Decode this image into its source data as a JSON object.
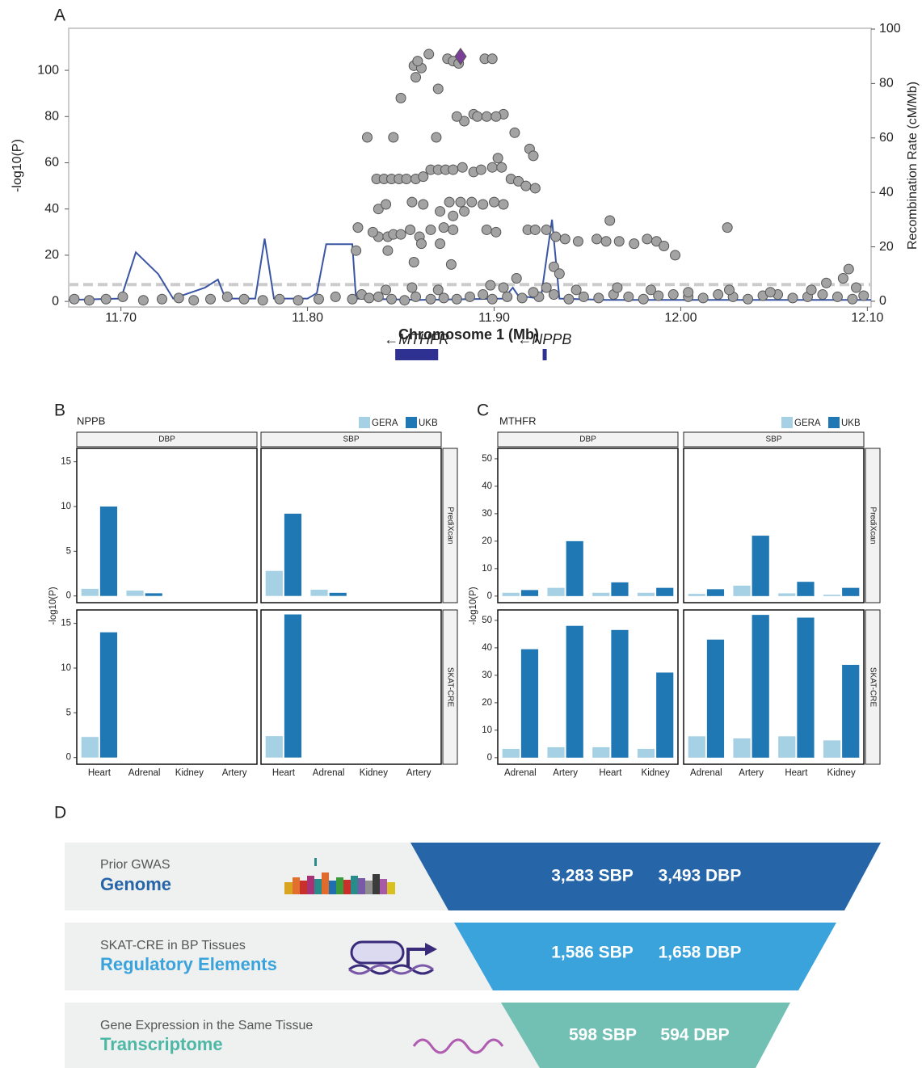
{
  "chart_data": [
    {
      "type": "scatter",
      "panel": "A",
      "xlabel": "Chromosome 1 (Mb)",
      "ylabel": "-log10(P)",
      "y2label": "Recombination Rate (cM/Mb)",
      "xlim": [
        11.672,
        12.102
      ],
      "xticks": [
        {
          "value": 11.7,
          "label": "11.70"
        },
        {
          "value": 11.8,
          "label": "11.80"
        },
        {
          "value": 11.9,
          "label": "11.90"
        },
        {
          "value": 12.0,
          "label": "12.00"
        },
        {
          "value": 12.1,
          "label": "12.10"
        }
      ],
      "ylim": [
        -2.4,
        118.2
      ],
      "yticks": [
        0,
        20,
        40,
        60,
        80,
        100
      ],
      "y2lim": [
        -2.1,
        100.3
      ],
      "y2ticks": [
        0,
        20,
        40,
        60,
        80,
        100
      ],
      "color": "#a3a3a3",
      "x": [
        11.875,
        11.878,
        11.881,
        11.895,
        11.899,
        11.857,
        11.861,
        11.859,
        11.865,
        11.858,
        11.87,
        11.85,
        11.889,
        11.891,
        11.896,
        11.905,
        11.884,
        11.88,
        11.901,
        11.911,
        11.832,
        11.846,
        11.869,
        11.919,
        11.921,
        11.902,
        11.837,
        11.841,
        11.845,
        11.849,
        11.853,
        11.858,
        11.862,
        11.866,
        11.87,
        11.874,
        11.878,
        11.883,
        11.889,
        11.893,
        11.899,
        11.904,
        11.909,
        11.913,
        11.917,
        11.922,
        11.838,
        11.842,
        11.856,
        11.862,
        11.876,
        11.882,
        11.888,
        11.894,
        11.9,
        11.905,
        11.871,
        11.878,
        11.884,
        11.838,
        11.843,
        11.846,
        11.85,
        11.855,
        11.86,
        11.866,
        11.873,
        11.878,
        11.896,
        11.901,
        11.918,
        11.922,
        11.928,
        11.933,
        11.938,
        11.945,
        11.955,
        11.96,
        11.967,
        11.975,
        11.982,
        11.987,
        11.991,
        11.997,
        11.962,
        12.025,
        11.827,
        11.826,
        11.835,
        11.861,
        11.843,
        11.871,
        11.675,
        11.683,
        11.692,
        11.701,
        11.712,
        11.722,
        11.731,
        11.739,
        11.748,
        11.757,
        11.766,
        11.776,
        11.785,
        11.795,
        11.806,
        11.815,
        11.824,
        11.829,
        11.833,
        11.838,
        11.845,
        11.852,
        11.858,
        11.866,
        11.873,
        11.88,
        11.887,
        11.894,
        11.899,
        11.907,
        11.915,
        11.924,
        11.932,
        11.94,
        11.948,
        11.956,
        11.964,
        11.972,
        11.98,
        11.988,
        11.996,
        12.004,
        12.012,
        12.02,
        12.028,
        12.036,
        12.044,
        12.052,
        12.06,
        12.068,
        12.076,
        12.084,
        12.092,
        12.098,
        11.842,
        11.856,
        11.87,
        11.898,
        11.905,
        11.928,
        11.944,
        11.966,
        11.984,
        12.004,
        12.026,
        12.048,
        12.07,
        12.094,
        11.932,
        11.935,
        11.912,
        11.921,
        12.09,
        12.087,
        12.078,
        11.857,
        11.877
      ],
      "values": [
        105,
        104,
        103,
        105,
        105,
        102,
        101,
        104,
        107,
        97,
        92,
        88,
        81,
        80,
        80,
        81,
        78,
        80,
        80,
        73,
        71,
        71,
        71,
        66,
        63,
        62,
        53,
        53,
        53,
        53,
        53,
        53,
        54,
        57,
        57,
        57,
        57,
        58,
        56,
        57,
        58,
        58,
        53,
        52,
        50,
        49,
        40,
        42,
        43,
        42,
        43,
        43,
        43,
        42,
        43,
        42,
        39,
        37,
        39,
        28,
        28,
        29,
        29,
        31,
        28,
        31,
        32,
        31,
        31,
        30,
        31,
        31,
        31,
        28,
        27,
        26,
        27,
        26,
        26,
        25,
        27,
        26,
        24,
        20,
        35,
        32,
        32,
        22,
        30,
        25,
        22,
        25,
        1,
        0.5,
        1,
        2,
        0.5,
        1,
        1.5,
        0.5,
        1,
        2,
        1,
        0.5,
        1,
        0.5,
        1,
        2,
        1,
        3,
        1.5,
        2,
        1,
        0.5,
        2,
        1,
        1.5,
        1,
        2,
        3,
        1,
        2,
        1.5,
        2,
        3,
        1,
        2,
        1.5,
        3,
        2,
        1,
        2.5,
        3,
        2,
        1.5,
        3,
        2,
        1,
        2.5,
        3,
        1.5,
        2,
        3,
        2,
        1,
        2.5,
        5,
        6,
        5,
        7,
        6,
        6,
        5,
        6,
        5,
        4,
        5,
        4,
        5,
        6,
        15,
        12,
        10,
        4,
        14,
        10,
        8,
        17,
        16
      ],
      "recombination": {
        "axis": "y2",
        "color": "#3a55a4",
        "x": [
          11.672,
          11.7,
          11.708,
          11.72,
          11.728,
          11.745,
          11.752,
          11.756,
          11.772,
          11.777,
          11.782,
          11.8,
          11.805,
          11.81,
          11.824,
          11.826,
          11.86,
          11.905,
          11.91,
          11.913,
          11.925,
          11.931,
          11.935,
          11.96,
          12.0,
          12.102
        ],
        "values": [
          0.5,
          1,
          18,
          10,
          1,
          5,
          8,
          1,
          1,
          23,
          1,
          1,
          3,
          21,
          21,
          1,
          0.5,
          1,
          5,
          2,
          1,
          30,
          1,
          0.5,
          0.5,
          0.5
        ]
      },
      "lead": {
        "x": 11.882,
        "y": 106,
        "color": "#7b3f98"
      },
      "threshold": 7.3,
      "threshold_color": "#cccccc",
      "genes": [
        {
          "label": "←MTHFR",
          "start": 11.847,
          "end": 11.87
        },
        {
          "label": "←NPPB",
          "start": 11.926,
          "end": 11.928
        }
      ],
      "gene_color": "#2e3192"
    },
    {
      "type": "bar",
      "panel": "B",
      "title": "NPPB",
      "ylabel": "-log10(P)",
      "columns": [
        "DBP",
        "SBP"
      ],
      "rows": [
        "PrediXcan",
        "SKAT-CRE"
      ],
      "categories": [
        "Heart",
        "Adrenal",
        "Kidney",
        "Artery"
      ],
      "ylim": [
        -0.75,
        16.5
      ],
      "yticks": [
        0,
        5,
        10,
        15
      ],
      "series": [
        {
          "name": "GERA",
          "color": "#a6d0e4",
          "values": [
            [
              [
                0.8,
                0.6,
                null,
                null
              ],
              [
                2.8,
                0.7,
                null,
                null
              ]
            ],
            [
              [
                2.3,
                null,
                null,
                null
              ],
              [
                2.4,
                null,
                null,
                null
              ]
            ]
          ]
        },
        {
          "name": "UKB",
          "color": "#1f78b4",
          "values": [
            [
              [
                10,
                0.3,
                null,
                null
              ],
              [
                9.2,
                0.35,
                null,
                null
              ]
            ],
            [
              [
                14,
                null,
                null,
                null
              ],
              [
                16,
                null,
                null,
                null
              ]
            ]
          ]
        }
      ]
    },
    {
      "type": "bar",
      "panel": "C",
      "title": "MTHFR",
      "ylabel": "-log10(P)",
      "columns": [
        "DBP",
        "SBP"
      ],
      "rows": [
        "PrediXcan",
        "SKAT-CRE"
      ],
      "categories": [
        "Adrenal",
        "Artery",
        "Heart",
        "Kidney"
      ],
      "ylim": [
        -2.4,
        53.8
      ],
      "yticks": [
        0,
        10,
        20,
        30,
        40,
        50
      ],
      "series": [
        {
          "name": "GERA",
          "color": "#a6d0e4",
          "values": [
            [
              [
                1.2,
                3,
                1.2,
                1.2
              ],
              [
                0.8,
                3.8,
                1,
                0.5
              ]
            ],
            [
              [
                3.2,
                3.8,
                3.8,
                3.2
              ],
              [
                7.8,
                7,
                7.8,
                6.3
              ]
            ]
          ]
        },
        {
          "name": "UKB",
          "color": "#1f78b4",
          "values": [
            [
              [
                2.2,
                20,
                5,
                3
              ],
              [
                2.5,
                22,
                5.2,
                3
              ]
            ],
            [
              [
                39.5,
                48,
                46.5,
                31
              ],
              [
                43,
                52,
                51,
                33.8
              ]
            ]
          ]
        }
      ]
    }
  ],
  "funnel": {
    "label": "D",
    "tiers": [
      {
        "caption": "Prior GWAS",
        "title": "Genome",
        "sbp": "3,283 SBP",
        "dbp": "3,493 DBP"
      },
      {
        "caption": "SKAT-CRE in BP Tissues",
        "title": "Regulatory Elements",
        "sbp": "1,586 SBP",
        "dbp": "1,658 DBP"
      },
      {
        "caption": "Gene Expression in the Same Tissue",
        "title": "Transcriptome",
        "sbp": "598 SBP",
        "dbp": "594 DBP"
      }
    ]
  }
}
